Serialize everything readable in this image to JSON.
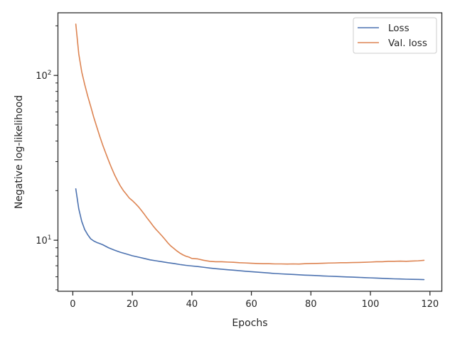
{
  "chart_data": {
    "type": "line",
    "title": "",
    "xlabel": "Epochs",
    "ylabel": "Negative log-likelihood",
    "yscale": "log",
    "xlim": [
      -5,
      124
    ],
    "ylim": [
      4.9,
      240
    ],
    "grid": false,
    "legend_position": "top-right",
    "x_ticks": [
      0,
      20,
      40,
      60,
      80,
      100,
      120
    ],
    "y_major_ticks": [
      10,
      100
    ],
    "y_major_tick_labels": [
      "10¹",
      "10²"
    ],
    "y_minor_ticks": [
      5,
      6,
      7,
      8,
      9,
      20,
      30,
      40,
      50,
      60,
      70,
      80,
      90,
      200
    ],
    "series": [
      {
        "name": "Loss",
        "color": "#4c72b0",
        "points": [
          [
            1,
            20.5
          ],
          [
            2,
            15.5
          ],
          [
            3,
            13
          ],
          [
            4,
            11.6
          ],
          [
            5,
            10.8
          ],
          [
            6,
            10.2
          ],
          [
            7,
            9.9
          ],
          [
            8,
            9.7
          ],
          [
            9,
            9.55
          ],
          [
            10,
            9.4
          ],
          [
            12,
            9.0
          ],
          [
            14,
            8.7
          ],
          [
            16,
            8.45
          ],
          [
            18,
            8.25
          ],
          [
            20,
            8.05
          ],
          [
            22,
            7.9
          ],
          [
            24,
            7.75
          ],
          [
            26,
            7.6
          ],
          [
            28,
            7.5
          ],
          [
            30,
            7.4
          ],
          [
            32,
            7.3
          ],
          [
            34,
            7.22
          ],
          [
            36,
            7.12
          ],
          [
            38,
            7.04
          ],
          [
            40,
            6.98
          ],
          [
            42,
            6.92
          ],
          [
            44,
            6.85
          ],
          [
            46,
            6.78
          ],
          [
            48,
            6.72
          ],
          [
            50,
            6.67
          ],
          [
            52,
            6.62
          ],
          [
            54,
            6.58
          ],
          [
            56,
            6.53
          ],
          [
            58,
            6.48
          ],
          [
            60,
            6.44
          ],
          [
            62,
            6.4
          ],
          [
            64,
            6.36
          ],
          [
            66,
            6.32
          ],
          [
            68,
            6.28
          ],
          [
            70,
            6.25
          ],
          [
            72,
            6.22
          ],
          [
            74,
            6.2
          ],
          [
            76,
            6.17
          ],
          [
            78,
            6.14
          ],
          [
            80,
            6.12
          ],
          [
            82,
            6.1
          ],
          [
            84,
            6.07
          ],
          [
            86,
            6.05
          ],
          [
            88,
            6.03
          ],
          [
            90,
            6.01
          ],
          [
            92,
            5.99
          ],
          [
            94,
            5.97
          ],
          [
            96,
            5.95
          ],
          [
            98,
            5.93
          ],
          [
            100,
            5.91
          ],
          [
            102,
            5.89
          ],
          [
            104,
            5.87
          ],
          [
            106,
            5.85
          ],
          [
            108,
            5.83
          ],
          [
            110,
            5.82
          ],
          [
            112,
            5.8
          ],
          [
            114,
            5.79
          ],
          [
            116,
            5.78
          ],
          [
            118,
            5.77
          ]
        ]
      },
      {
        "name": "Val. loss",
        "color": "#dd8452",
        "points": [
          [
            1,
            205
          ],
          [
            2,
            135
          ],
          [
            3,
            105
          ],
          [
            4,
            88
          ],
          [
            5,
            75
          ],
          [
            6,
            65
          ],
          [
            7,
            56
          ],
          [
            8,
            49
          ],
          [
            9,
            43
          ],
          [
            10,
            38
          ],
          [
            11,
            34
          ],
          [
            12,
            30.5
          ],
          [
            13,
            27.5
          ],
          [
            14,
            25
          ],
          [
            15,
            23
          ],
          [
            16,
            21.3
          ],
          [
            17,
            20
          ],
          [
            18,
            19
          ],
          [
            19,
            18
          ],
          [
            20,
            17.4
          ],
          [
            21,
            16.7
          ],
          [
            22,
            16
          ],
          [
            23,
            15.2
          ],
          [
            24,
            14.4
          ],
          [
            25,
            13.6
          ],
          [
            26,
            12.9
          ],
          [
            27,
            12.2
          ],
          [
            28,
            11.6
          ],
          [
            29,
            11.1
          ],
          [
            30,
            10.6
          ],
          [
            31,
            10.1
          ],
          [
            32,
            9.6
          ],
          [
            33,
            9.2
          ],
          [
            34,
            8.9
          ],
          [
            35,
            8.6
          ],
          [
            36,
            8.35
          ],
          [
            37,
            8.15
          ],
          [
            38,
            8.0
          ],
          [
            39,
            7.9
          ],
          [
            40,
            7.75
          ],
          [
            42,
            7.7
          ],
          [
            44,
            7.55
          ],
          [
            46,
            7.45
          ],
          [
            48,
            7.4
          ],
          [
            50,
            7.4
          ],
          [
            52,
            7.37
          ],
          [
            54,
            7.35
          ],
          [
            56,
            7.3
          ],
          [
            58,
            7.28
          ],
          [
            60,
            7.25
          ],
          [
            62,
            7.22
          ],
          [
            64,
            7.2
          ],
          [
            66,
            7.2
          ],
          [
            68,
            7.18
          ],
          [
            70,
            7.18
          ],
          [
            72,
            7.17
          ],
          [
            74,
            7.18
          ],
          [
            76,
            7.17
          ],
          [
            78,
            7.2
          ],
          [
            80,
            7.22
          ],
          [
            82,
            7.23
          ],
          [
            84,
            7.25
          ],
          [
            86,
            7.27
          ],
          [
            88,
            7.28
          ],
          [
            90,
            7.3
          ],
          [
            92,
            7.3
          ],
          [
            94,
            7.32
          ],
          [
            96,
            7.33
          ],
          [
            98,
            7.35
          ],
          [
            100,
            7.37
          ],
          [
            102,
            7.4
          ],
          [
            104,
            7.4
          ],
          [
            106,
            7.45
          ],
          [
            108,
            7.45
          ],
          [
            110,
            7.47
          ],
          [
            112,
            7.45
          ],
          [
            114,
            7.48
          ],
          [
            116,
            7.5
          ],
          [
            118,
            7.55
          ]
        ]
      }
    ]
  }
}
